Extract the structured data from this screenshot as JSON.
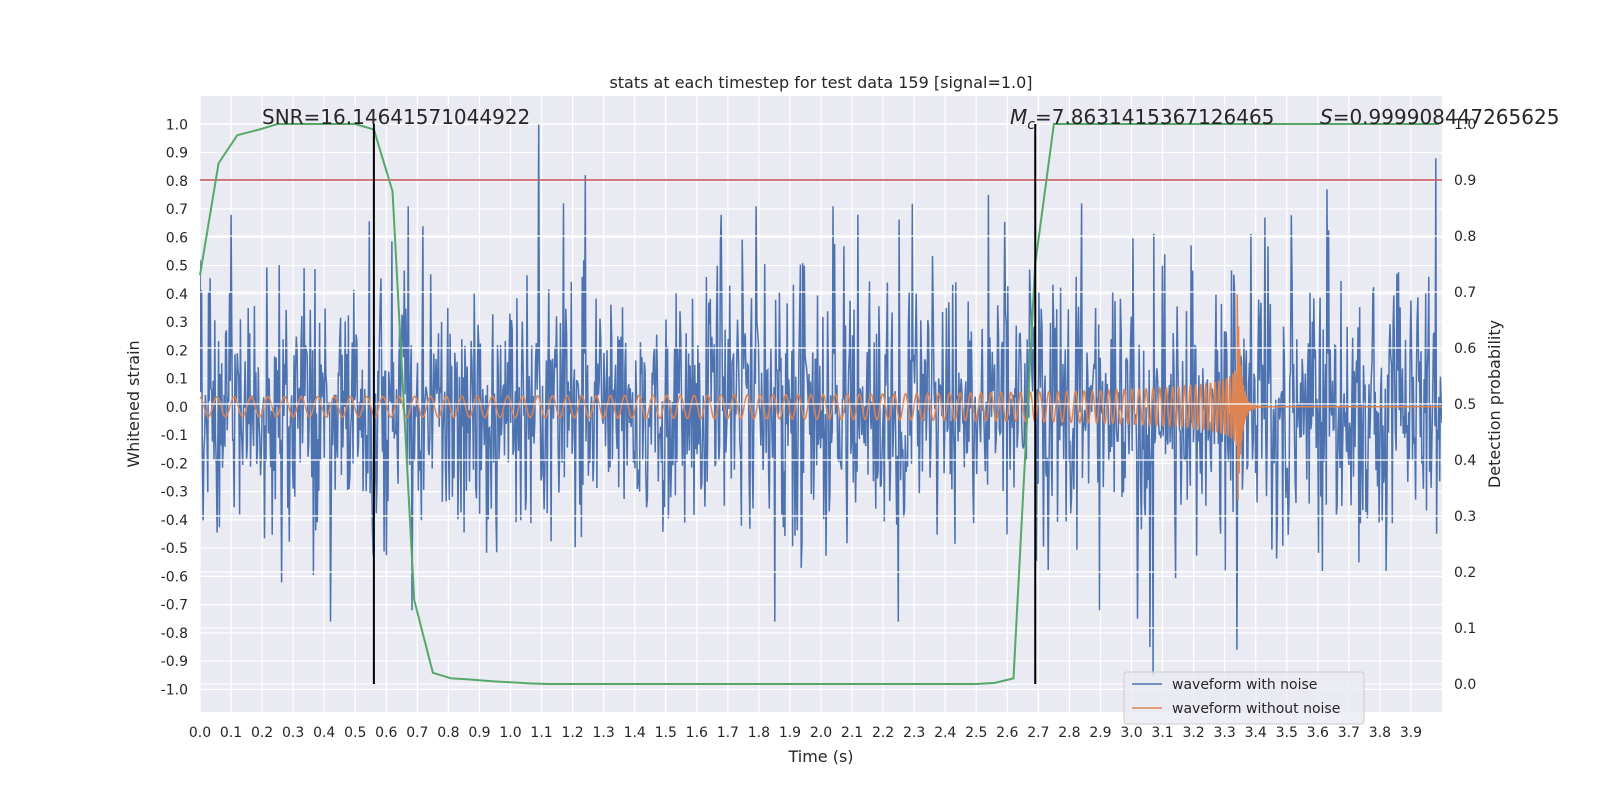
{
  "chart_data": {
    "type": "line",
    "title": "stats at each timestep for test data 159 [signal=1.0]",
    "xlabel": "Time (s)",
    "ylabel": "Whitened strain",
    "ylabel_right": "Detection probability",
    "xlim": [
      0.0,
      4.0
    ],
    "ylim": [
      -1.08,
      1.1
    ],
    "ylim_right": [
      -0.05,
      1.05
    ],
    "x_ticks": [
      "0.0",
      "0.1",
      "0.2",
      "0.3",
      "0.4",
      "0.5",
      "0.6",
      "0.7",
      "0.8",
      "0.9",
      "1.0",
      "1.1",
      "1.2",
      "1.3",
      "1.4",
      "1.5",
      "1.6",
      "1.7",
      "1.8",
      "1.9",
      "2.0",
      "2.1",
      "2.2",
      "2.3",
      "2.4",
      "2.5",
      "2.6",
      "2.7",
      "2.8",
      "2.9",
      "3.0",
      "3.1",
      "3.2",
      "3.3",
      "3.4",
      "3.5",
      "3.6",
      "3.7",
      "3.8",
      "3.9"
    ],
    "y_ticks": [
      "1.0",
      "0.9",
      "0.8",
      "0.7",
      "0.6",
      "0.5",
      "0.4",
      "0.3",
      "0.2",
      "0.1",
      "0.0",
      "-0.1",
      "-0.2",
      "-0.3",
      "-0.4",
      "-0.5",
      "-0.6",
      "-0.7",
      "-0.8",
      "-0.9",
      "-1.0"
    ],
    "y_ticks_right": [
      "1.0",
      "0.9",
      "0.8",
      "0.7",
      "0.6",
      "0.5",
      "0.4",
      "0.3",
      "0.2",
      "0.1",
      "0.0"
    ],
    "grid": true,
    "legend_position": "lower-right",
    "annotations": {
      "snr": "SNR=16.14641571044922",
      "mc_symbol": "M",
      "mc_sub": "c",
      "mc_value": "=7.8631415367126465",
      "s_symbol": "S",
      "s_value": "=0.999908447265625"
    },
    "threshold_line_right": 0.9,
    "threshold_color": "#c44e52",
    "vertical_lines_x": [
      0.56,
      2.69
    ],
    "series": [
      {
        "name": "waveform with noise",
        "color": "#4c72b0",
        "axis": "left",
        "kind": "noise",
        "amplitude_envelope": 0.28,
        "notable_peaks": [
          {
            "x": 0.0,
            "y": 0.52
          },
          {
            "x": 0.1,
            "y": 0.68
          },
          {
            "x": 0.42,
            "y": -0.76
          },
          {
            "x": 0.67,
            "y": 0.71
          },
          {
            "x": 1.09,
            "y": 1.0
          },
          {
            "x": 1.24,
            "y": 0.82
          },
          {
            "x": 1.79,
            "y": 0.71
          },
          {
            "x": 1.85,
            "y": -0.76
          },
          {
            "x": 2.04,
            "y": 0.71
          },
          {
            "x": 2.12,
            "y": 0.68
          },
          {
            "x": 2.25,
            "y": -0.76
          },
          {
            "x": 2.54,
            "y": 0.75
          },
          {
            "x": 2.84,
            "y": 0.72
          },
          {
            "x": 3.02,
            "y": -0.75
          },
          {
            "x": 3.06,
            "y": -0.85
          },
          {
            "x": 3.07,
            "y": -0.95
          },
          {
            "x": 3.34,
            "y": -0.86
          },
          {
            "x": 3.63,
            "y": 0.77
          },
          {
            "x": 3.98,
            "y": 0.88
          }
        ]
      },
      {
        "name": "waveform without noise",
        "color": "#dd8452",
        "axis": "left",
        "kind": "chirp",
        "start_freq_hz": 18,
        "end_freq_hz": 80,
        "merger_time": 3.34,
        "start_amplitude": 0.035,
        "peak_amplitude": 0.45
      },
      {
        "name": "",
        "color": "#55a868",
        "axis": "right",
        "kind": "probability",
        "x": [
          0.0,
          0.06,
          0.12,
          0.19,
          0.25,
          0.31,
          0.37,
          0.44,
          0.5,
          0.56,
          0.62,
          0.69,
          0.75,
          0.81,
          0.87,
          0.94,
          1.0,
          1.06,
          1.12,
          1.19,
          1.25,
          1.5,
          2.0,
          2.5,
          2.56,
          2.62,
          2.69,
          2.75,
          2.81,
          3.0,
          3.5,
          3.99
        ],
        "y": [
          0.73,
          0.93,
          0.98,
          0.99,
          1.0,
          1.0,
          1.0,
          1.0,
          1.0,
          0.99,
          0.88,
          0.15,
          0.02,
          0.01,
          0.008,
          0.005,
          0.003,
          0.001,
          0.0,
          0.0,
          0.0,
          0.0,
          0.0,
          0.0,
          0.002,
          0.01,
          0.75,
          1.0,
          1.0,
          1.0,
          1.0,
          1.0
        ]
      }
    ]
  }
}
